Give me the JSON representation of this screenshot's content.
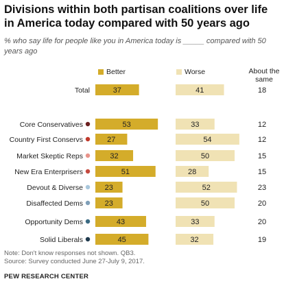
{
  "title": "Divisions within both partisan coalitions over life in America today compared with 50 years ago",
  "subtitle": "% who say life for people like you in America today is _____ compared with 50 years ago",
  "legend": {
    "better": "Better",
    "worse": "Worse",
    "about": "About the same"
  },
  "colors": {
    "better": "#d4ac2a",
    "worse": "#f0e2b4",
    "text": "#222222"
  },
  "chart_data": {
    "type": "bar",
    "categories": [
      "Total",
      "Core Conservatives",
      "Country First Conservs",
      "Market Skeptic Reps",
      "New Era Enterprisers",
      "Devout & Diverse",
      "Disaffected Dems",
      "Opportunity Dems",
      "Solid Liberals"
    ],
    "dot_colors": [
      null,
      "#6b1f1f",
      "#c0392b",
      "#e8938a",
      "#c44a3f",
      "#a9c7dc",
      "#7f9fb8",
      "#3b6a82",
      "#1f3a4d"
    ],
    "series": [
      {
        "name": "Better",
        "values": [
          37,
          53,
          27,
          32,
          51,
          23,
          23,
          43,
          45
        ]
      },
      {
        "name": "Worse",
        "values": [
          41,
          33,
          54,
          50,
          28,
          52,
          50,
          33,
          32
        ]
      },
      {
        "name": "About the same",
        "values": [
          18,
          12,
          12,
          15,
          15,
          23,
          20,
          20,
          19
        ]
      }
    ]
  },
  "notes": "Note: Don't know responses not shown. QB3.",
  "source": "Source: Survey conducted June 27-July 9, 2017.",
  "brand": "PEW RESEARCH CENTER"
}
